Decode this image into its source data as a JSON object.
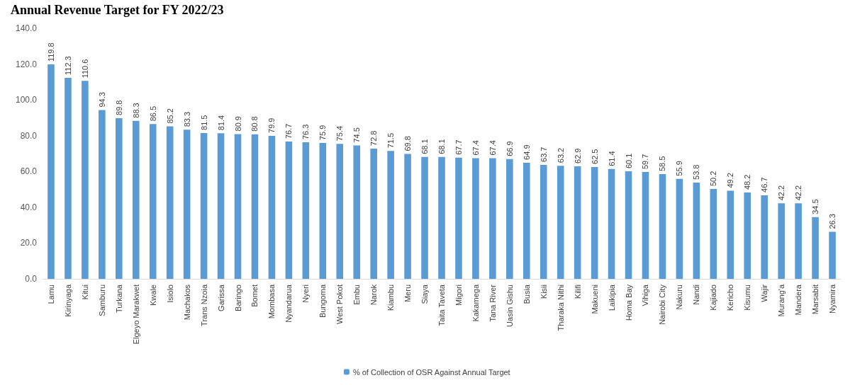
{
  "chart_data": {
    "type": "bar",
    "title": "Annual Revenue Target for FY 2022/23",
    "categories": [
      "Lamu",
      "Kirinyaga",
      "Kitui",
      "Samburu",
      "Turkana",
      "Elgeyo Marakwet",
      "Kwale",
      "Isiolo",
      "Machakos",
      "Trans Nzoia",
      "Garissa",
      "Baringo",
      "Bomet",
      "Mombasa",
      "Nyandarua",
      "Nyeri",
      "Bungoma",
      "West Pokot",
      "Embu",
      "Narok",
      "Kiambu",
      "Meru",
      "Siaya",
      "Taita Taveta",
      "Migori",
      "Kakamega",
      "Tana River",
      "Uasin Gishu",
      "Busia",
      "Kisii",
      "Tharaka Nithi",
      "Kilifi",
      "Makueni",
      "Laikipia",
      "Homa Bay",
      "Vihiga",
      "Nairobi City",
      "Nakuru",
      "Nandi",
      "Kajiado",
      "Kericho",
      "Kisumu",
      "Wajir",
      "Murang'a",
      "Mandera",
      "Marsabit",
      "Nyamira"
    ],
    "series": [
      {
        "name": "% of Collection of OSR Against Annual Target",
        "color": "#5b9bd5",
        "values": [
          119.8,
          112.3,
          110.6,
          94.3,
          89.8,
          88.3,
          86.5,
          85.2,
          83.3,
          81.5,
          81.4,
          80.9,
          80.8,
          79.9,
          76.7,
          76.3,
          75.9,
          75.4,
          74.5,
          72.8,
          71.5,
          69.8,
          68.1,
          68.1,
          67.7,
          67.4,
          67.4,
          66.9,
          64.9,
          63.7,
          63.2,
          62.9,
          62.5,
          61.4,
          60.1,
          59.7,
          58.5,
          55.9,
          53.8,
          50.2,
          49.2,
          48.2,
          46.7,
          42.2,
          42.2,
          34.5,
          26.3
        ]
      }
    ],
    "ylim": [
      0,
      140
    ],
    "yticks": [
      {
        "value": 0,
        "label": "0.0"
      },
      {
        "value": 20,
        "label": "20.0"
      },
      {
        "value": 40,
        "label": "40.0"
      },
      {
        "value": 60,
        "label": "60.0"
      },
      {
        "value": 80,
        "label": "80.0"
      },
      {
        "value": 100,
        "label": "100.0"
      },
      {
        "value": 120,
        "label": "120.0"
      },
      {
        "value": 140,
        "label": "140.0"
      }
    ],
    "grid": false,
    "legend": "bottom",
    "data_labels": true
  }
}
